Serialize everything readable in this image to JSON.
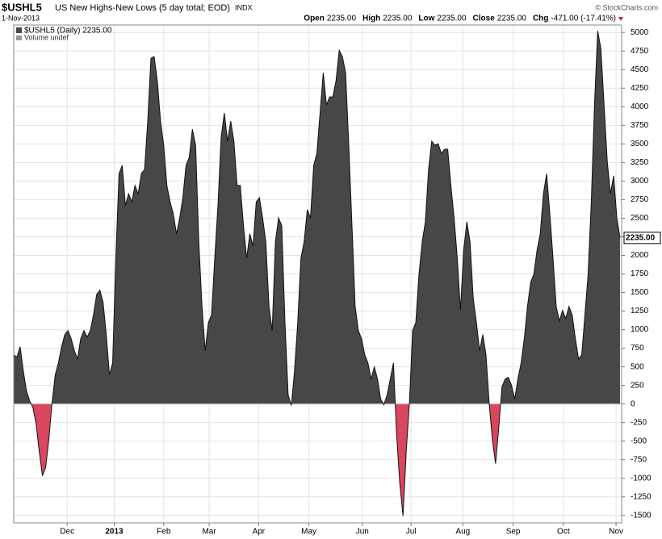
{
  "chart_data": {
    "type": "area",
    "symbol": "$USHL5",
    "title": "US New Highs-New Lows (5 day total; EOD)",
    "exchange": "INDX",
    "date": "1-Nov-2013",
    "quote": [
      {
        "label": "Open",
        "value": "2235.00"
      },
      {
        "label": "High",
        "value": "2235.00"
      },
      {
        "label": "Low",
        "value": "2235.00"
      },
      {
        "label": "Close",
        "value": "2235.00"
      },
      {
        "label": "Chg",
        "value": "-471.00 (-17.41%)"
      }
    ],
    "credit": "© StockCharts.com",
    "legend": [
      "$USHL5 (Daily) 2235.00",
      "Volume undef"
    ],
    "last_label": "2235.00",
    "color": "#474747",
    "negative_color": "#d9475f",
    "values": [
      660,
      630,
      770,
      445,
      175,
      40,
      -45,
      -260,
      -640,
      -965,
      -855,
      -477,
      10,
      390,
      553,
      770,
      933,
      987,
      880,
      716,
      607,
      880,
      987,
      900,
      987,
      1200,
      1475,
      1530,
      1367,
      933,
      390,
      553,
      1963,
      3100,
      3210,
      2670,
      2830,
      2720,
      2940,
      2830,
      3100,
      3156,
      3807,
      4653,
      4675,
      4350,
      3807,
      3482,
      2940,
      2720,
      2560,
      2290,
      2500,
      2776,
      3210,
      3319,
      3698,
      3482,
      2180,
      1312,
      716,
      1095,
      1200,
      1963,
      2668,
      3590,
      3915,
      3536,
      3807,
      3536,
      2940,
      2940,
      2397,
      1963,
      2290,
      2125,
      2720,
      2776,
      2505,
      2180,
      1312,
      987,
      2180,
      2505,
      2397,
      1095,
      120,
      -20,
      445,
      1095,
      1963,
      2180,
      2614,
      2505,
      3210,
      3373,
      3915,
      4458,
      4024,
      4132,
      4132,
      4350,
      4761,
      4675,
      4458,
      3482,
      2397,
      1312,
      987,
      880,
      662,
      553,
      336,
      499,
      336,
      65,
      -10,
      120,
      336,
      553,
      -423,
      -1074,
      -1508,
      -640,
      10,
      987,
      1095,
      1746,
      2180,
      2451,
      3156,
      3536,
      3482,
      3503,
      3373,
      3428,
      3428,
      2940,
      2505,
      1963,
      1258,
      2071,
      2451,
      2180,
      1420,
      1095,
      716,
      933,
      662,
      10,
      -477,
      -803,
      -314,
      228,
      336,
      358,
      250,
      65,
      336,
      553,
      880,
      1312,
      1637,
      1746,
      2071,
      2290,
      2830,
      3100,
      2560,
      1963,
      1312,
      1117,
      1258,
      1150,
      1312,
      1200,
      880,
      607,
      662,
      1200,
      1746,
      2722,
      4024,
      5022,
      4783,
      4024,
      3265,
      2830,
      3070,
      2505,
      2235
    ],
    "xticks": [
      {
        "value": 16.75,
        "label": "Dec"
      },
      {
        "value": 31.5,
        "label": "2013"
      },
      {
        "value": 47,
        "label": "Feb"
      },
      {
        "value": 61.25,
        "label": "Mar"
      },
      {
        "value": 76.75,
        "label": "Apr"
      },
      {
        "value": 92.5,
        "label": "May"
      },
      {
        "value": 109.25,
        "label": "Jun"
      },
      {
        "value": 124.5,
        "label": "Jul"
      },
      {
        "value": 140.75,
        "label": "Aug"
      },
      {
        "value": 156.5,
        "label": "Sep"
      },
      {
        "value": 172.25,
        "label": "Oct"
      },
      {
        "value": 188.75,
        "label": "Nov"
      }
    ],
    "ylim": [
      -1600,
      5100
    ],
    "yticks": [
      -1500,
      -1250,
      -1000,
      -750,
      -500,
      -250,
      0,
      250,
      500,
      750,
      1000,
      1250,
      1500,
      1750,
      2000,
      2250,
      2500,
      2750,
      3000,
      3250,
      3500,
      3750,
      4000,
      4250,
      4500,
      4750,
      5000
    ],
    "grid": true
  }
}
